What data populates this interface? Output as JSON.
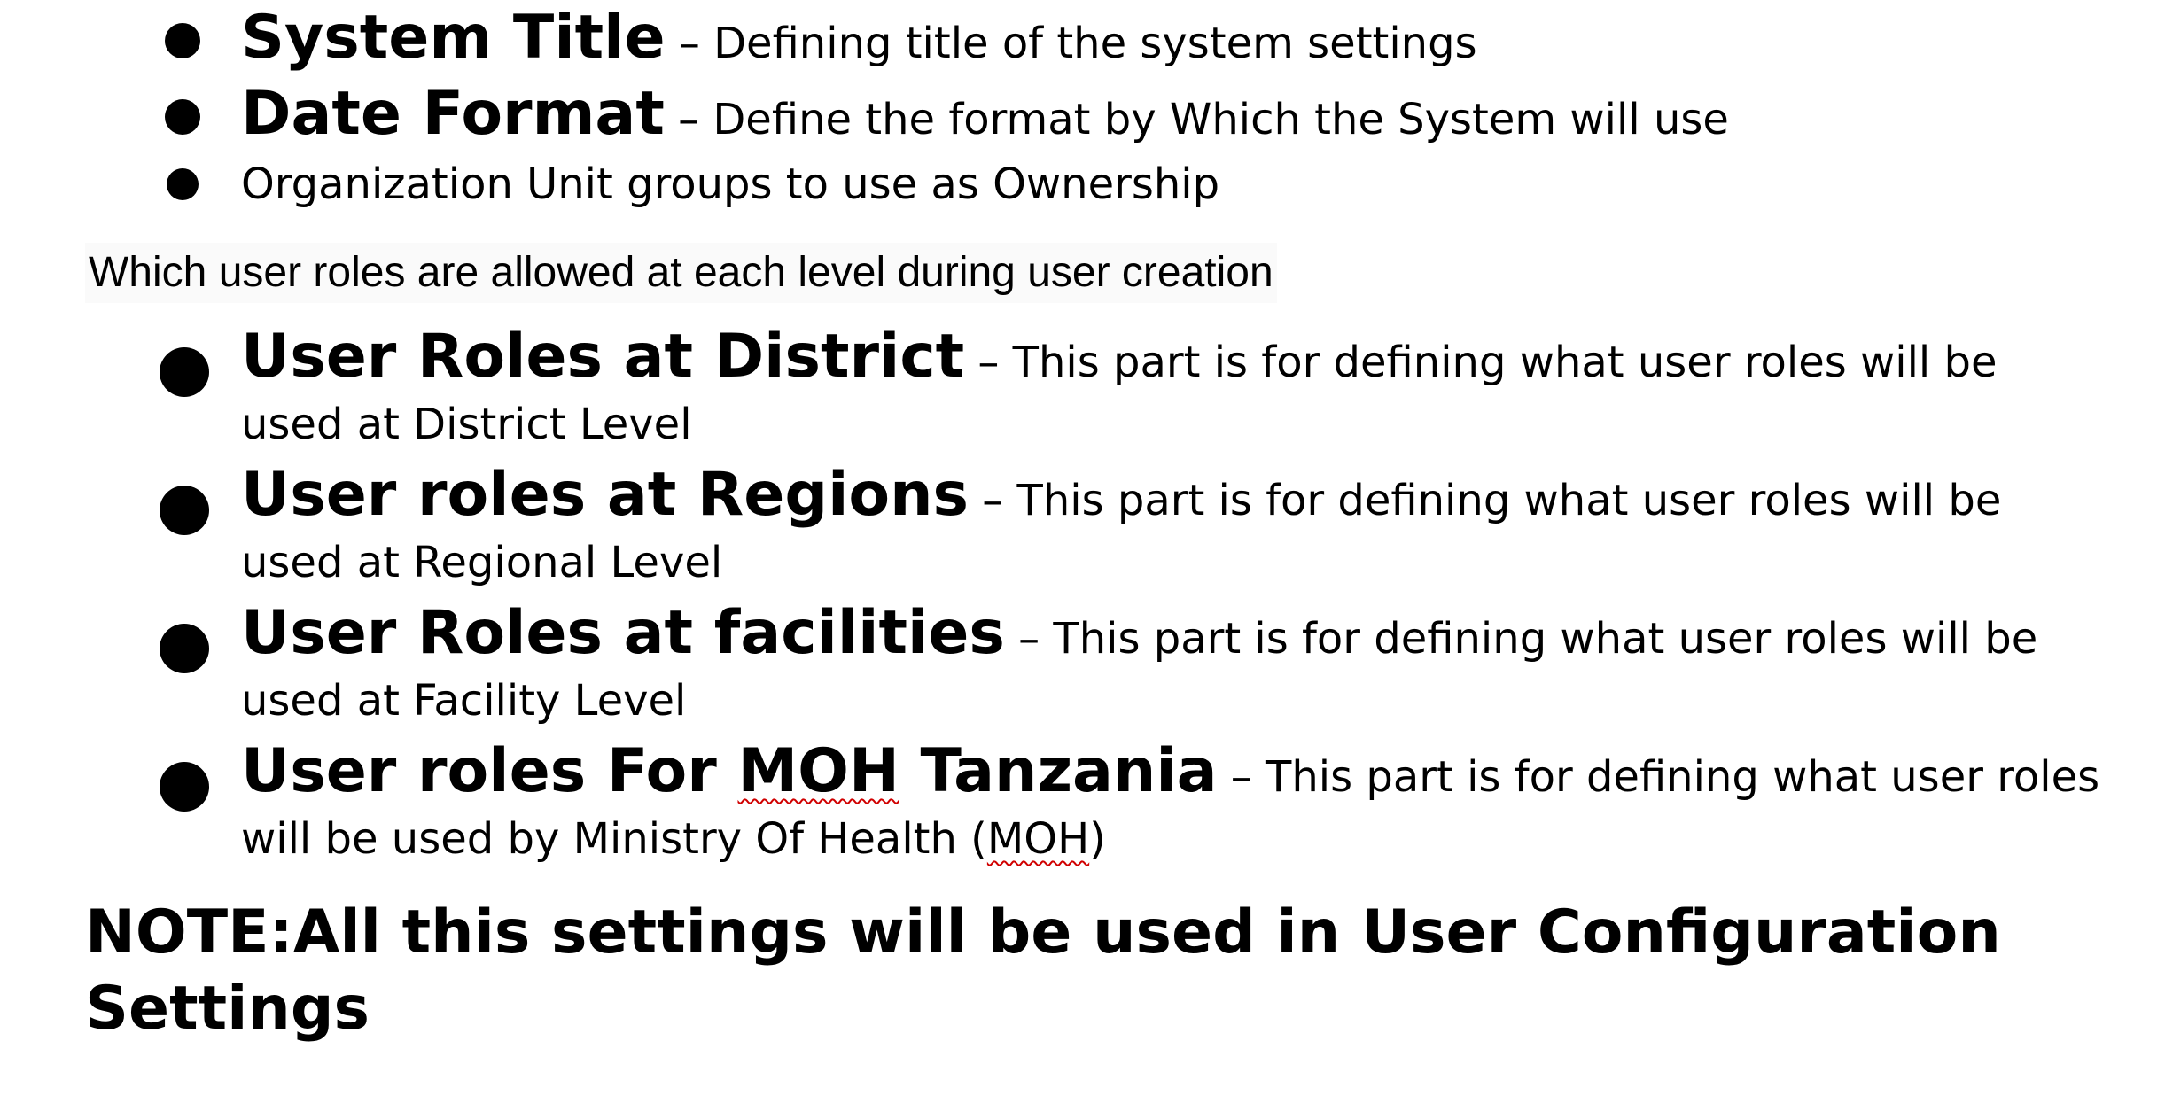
{
  "top_list": [
    {
      "term": "System Title",
      "desc": " – Defining title of the system settings"
    },
    {
      "term": "Date Format",
      "desc": " – Define the format by Which the System will use"
    },
    {
      "text": "Organization Unit groups to use as Ownership"
    }
  ],
  "section_line": "Which user roles are allowed at each level during user creation",
  "roles_list": [
    {
      "term": "User Roles at District",
      "desc": " – This part is for defining what user roles will be used at District Level"
    },
    {
      "term": "User roles at Regions",
      "desc": " – This part is for defining what user roles will be used at Regional Level"
    },
    {
      "term": "User Roles at facilities",
      "desc": " – This part is for defining what user roles will be used at Facility Level"
    },
    {
      "term_pre": "User roles For ",
      "term_flag": "MOH",
      "term_post": " Tanzania",
      "desc_pre": " – This part is for defining what user roles will be used by Ministry Of Health (",
      "desc_flag": "MOH",
      "desc_post": ")"
    }
  ],
  "note": "NOTE:All this settings will be used in User Configuration Settings"
}
